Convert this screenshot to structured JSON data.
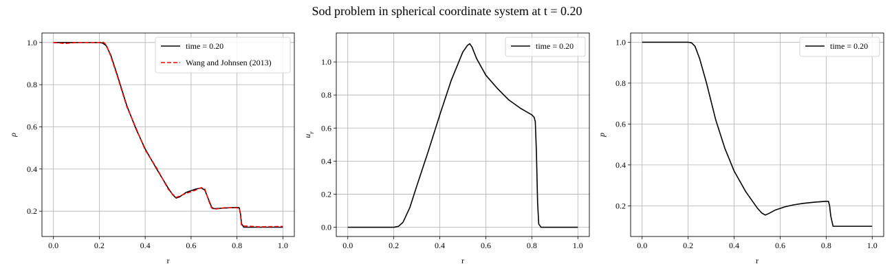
{
  "figure": {
    "title": "Sod problem in spherical coordinate system at t = 0.20"
  },
  "chart_data": [
    {
      "type": "line",
      "xlabel": "r",
      "ylabel": "ρ",
      "xlim": [
        -0.05,
        1.05
      ],
      "ylim": [
        0.08,
        1.045
      ],
      "xticks": [
        0.0,
        0.2,
        0.4,
        0.6,
        0.8,
        1.0
      ],
      "yticks": [
        0.2,
        0.4,
        0.6,
        0.8,
        1.0
      ],
      "grid": true,
      "legend_position": "top-right",
      "series": [
        {
          "name": "time = 0.20",
          "color": "#000000",
          "dash": "solid",
          "x": [
            0.0,
            0.1,
            0.2,
            0.215,
            0.23,
            0.25,
            0.28,
            0.32,
            0.36,
            0.4,
            0.45,
            0.5,
            0.52,
            0.535,
            0.55,
            0.58,
            0.62,
            0.645,
            0.66,
            0.68,
            0.69,
            0.7,
            0.75,
            0.8,
            0.81,
            0.815,
            0.82,
            0.83,
            0.9,
            1.0
          ],
          "y": [
            1.0,
            1.0,
            1.0,
            0.997,
            0.985,
            0.94,
            0.84,
            0.7,
            0.59,
            0.495,
            0.4,
            0.31,
            0.278,
            0.262,
            0.268,
            0.29,
            0.305,
            0.31,
            0.3,
            0.245,
            0.218,
            0.212,
            0.215,
            0.218,
            0.216,
            0.19,
            0.14,
            0.124,
            0.124,
            0.124
          ]
        },
        {
          "name": "Wang and Johnsen (2013)",
          "color": "#ff0000",
          "dash": "dashed",
          "x": [
            0.0,
            0.05,
            0.1,
            0.2,
            0.215,
            0.23,
            0.25,
            0.28,
            0.32,
            0.36,
            0.4,
            0.45,
            0.5,
            0.52,
            0.535,
            0.55,
            0.58,
            0.62,
            0.645,
            0.66,
            0.68,
            0.69,
            0.7,
            0.75,
            0.8,
            0.81,
            0.815,
            0.82,
            0.83,
            0.9,
            1.0
          ],
          "y": [
            1.0,
            0.995,
            1.0,
            1.0,
            1.003,
            0.99,
            0.935,
            0.835,
            0.695,
            0.595,
            0.49,
            0.405,
            0.305,
            0.28,
            0.265,
            0.272,
            0.285,
            0.3,
            0.312,
            0.305,
            0.24,
            0.215,
            0.209,
            0.217,
            0.216,
            0.213,
            0.185,
            0.132,
            0.13,
            0.126,
            0.128
          ]
        }
      ]
    },
    {
      "type": "line",
      "xlabel": "r",
      "ylabel": "u_r",
      "xlim": [
        -0.05,
        1.05
      ],
      "ylim": [
        -0.056,
        1.175
      ],
      "xticks": [
        0.0,
        0.2,
        0.4,
        0.6,
        0.8,
        1.0
      ],
      "yticks": [
        0.0,
        0.2,
        0.4,
        0.6,
        0.8,
        1.0
      ],
      "grid": true,
      "legend_position": "top-right",
      "series": [
        {
          "name": "time = 0.20",
          "color": "#000000",
          "dash": "solid",
          "x": [
            0.0,
            0.2,
            0.22,
            0.24,
            0.27,
            0.3,
            0.35,
            0.4,
            0.45,
            0.5,
            0.52,
            0.53,
            0.54,
            0.56,
            0.6,
            0.65,
            0.7,
            0.75,
            0.8,
            0.81,
            0.815,
            0.82,
            0.825,
            0.83,
            0.84,
            0.9,
            1.0
          ],
          "y": [
            0.0,
            0.0,
            0.005,
            0.03,
            0.12,
            0.25,
            0.46,
            0.68,
            0.89,
            1.06,
            1.1,
            1.11,
            1.09,
            1.02,
            0.92,
            0.84,
            0.77,
            0.72,
            0.68,
            0.665,
            0.64,
            0.45,
            0.15,
            0.02,
            0.0,
            0.0,
            0.0
          ]
        }
      ]
    },
    {
      "type": "line",
      "xlabel": "r",
      "ylabel": "p",
      "xlim": [
        -0.05,
        1.05
      ],
      "ylim": [
        0.05,
        1.045
      ],
      "xticks": [
        0.0,
        0.2,
        0.4,
        0.6,
        0.8,
        1.0
      ],
      "yticks": [
        0.2,
        0.4,
        0.6,
        0.8,
        1.0
      ],
      "grid": true,
      "legend_position": "top-right",
      "series": [
        {
          "name": "time = 0.20",
          "color": "#000000",
          "dash": "solid",
          "x": [
            0.0,
            0.2,
            0.215,
            0.23,
            0.25,
            0.28,
            0.32,
            0.36,
            0.4,
            0.45,
            0.5,
            0.52,
            0.535,
            0.55,
            0.58,
            0.62,
            0.66,
            0.7,
            0.75,
            0.8,
            0.81,
            0.815,
            0.82,
            0.83,
            0.9,
            1.0
          ],
          "y": [
            1.0,
            1.0,
            0.997,
            0.98,
            0.92,
            0.8,
            0.62,
            0.48,
            0.37,
            0.27,
            0.19,
            0.165,
            0.155,
            0.162,
            0.18,
            0.195,
            0.205,
            0.212,
            0.218,
            0.222,
            0.222,
            0.2,
            0.15,
            0.1,
            0.1,
            0.1
          ]
        }
      ]
    }
  ]
}
